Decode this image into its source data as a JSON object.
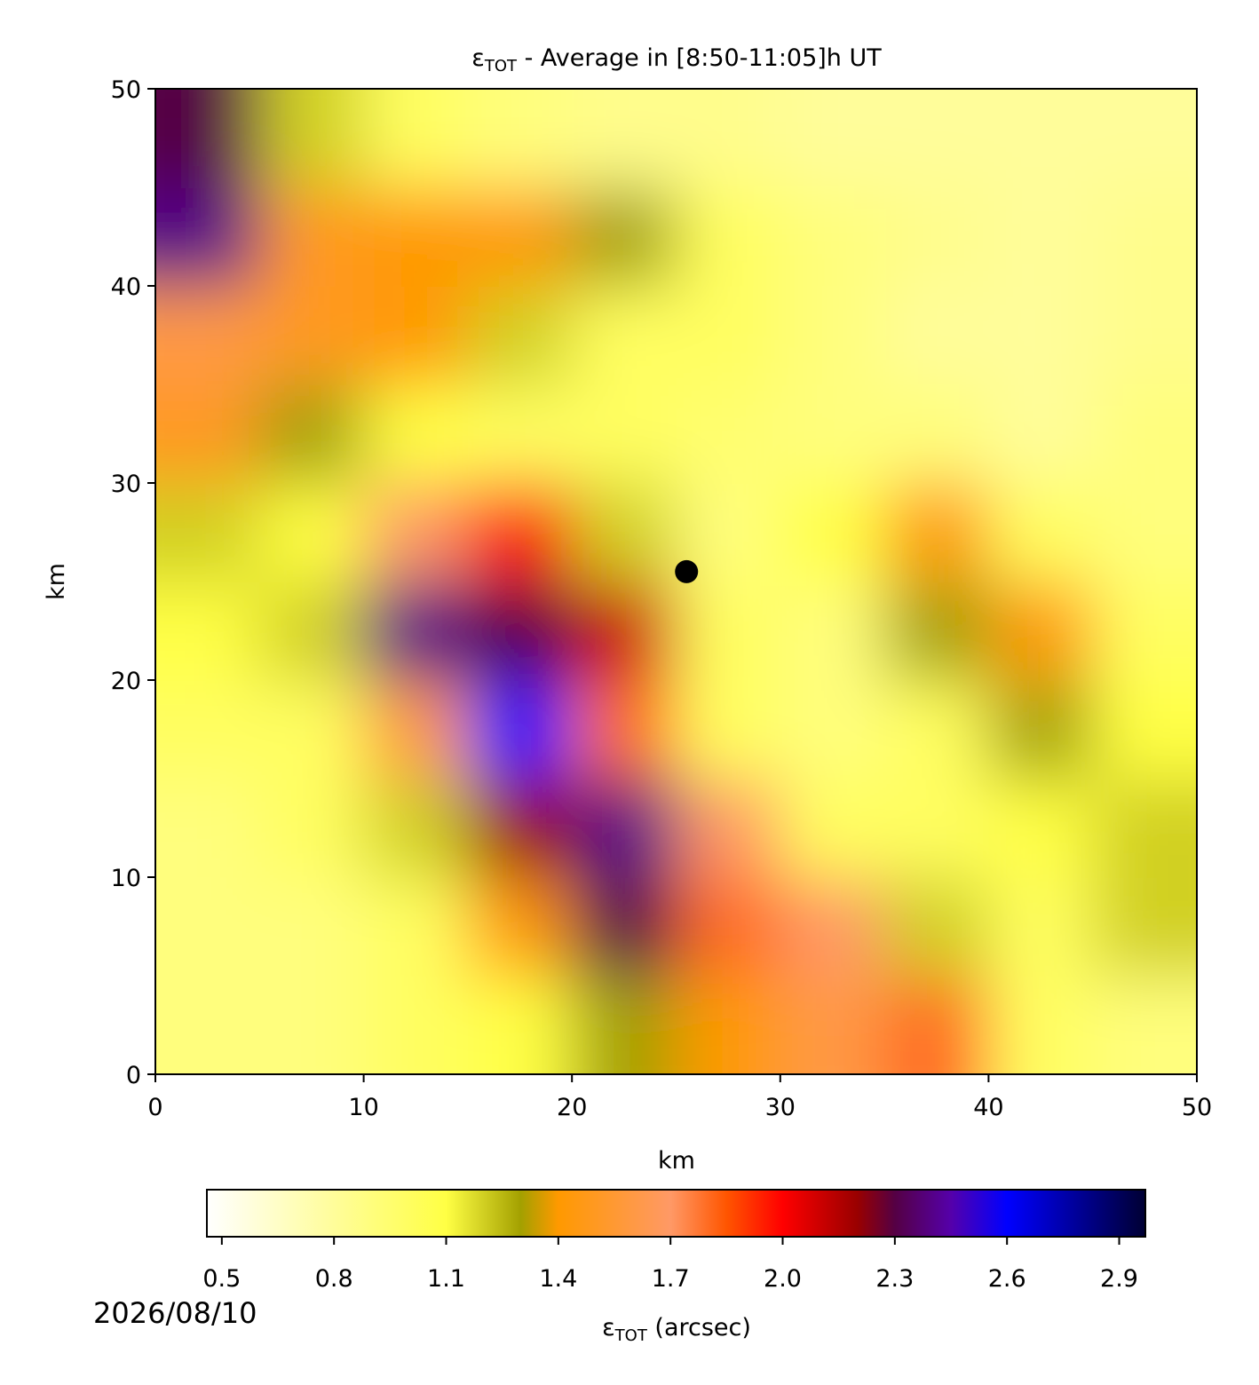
{
  "chart_data": {
    "type": "heatmap",
    "title": {
      "symbol": "ε",
      "subscript": "TOT",
      "text": " - Average in [8:50-11:05]h UT"
    },
    "xlabel": "km",
    "ylabel": "km",
    "xlim": [
      0,
      50
    ],
    "ylim": [
      0,
      50
    ],
    "xticks": [
      0,
      10,
      20,
      30,
      40,
      50
    ],
    "yticks": [
      0,
      10,
      20,
      30,
      40,
      50
    ],
    "x": [
      2.5,
      7.5,
      12.5,
      17.5,
      22.5,
      27.5,
      32.5,
      37.5,
      42.5,
      47.5
    ],
    "y": [
      2.5,
      7.5,
      12.5,
      17.5,
      22.5,
      27.5,
      32.5,
      37.5,
      42.5,
      47.5
    ],
    "z": [
      [
        0.9,
        0.9,
        1.0,
        1.1,
        1.3,
        1.4,
        1.6,
        1.8,
        1.0,
        0.9
      ],
      [
        0.9,
        0.9,
        1.0,
        1.4,
        2.3,
        1.8,
        1.7,
        1.2,
        1.0,
        1.2
      ],
      [
        0.9,
        1.0,
        1.2,
        2.2,
        2.4,
        1.7,
        1.0,
        1.0,
        1.1,
        1.2
      ],
      [
        1.0,
        1.0,
        1.6,
        2.6,
        1.8,
        1.0,
        0.9,
        1.0,
        1.3,
        1.1
      ],
      [
        1.1,
        1.2,
        2.4,
        2.3,
        2.1,
        1.0,
        0.9,
        1.3,
        1.4,
        1.0
      ],
      [
        1.2,
        1.1,
        1.7,
        2.0,
        1.2,
        0.9,
        1.1,
        1.4,
        1.0,
        0.9
      ],
      [
        1.5,
        1.3,
        1.1,
        1.0,
        1.0,
        0.95,
        0.9,
        0.9,
        0.8,
        0.9
      ],
      [
        1.6,
        1.5,
        1.4,
        1.2,
        1.0,
        1.0,
        0.9,
        0.8,
        0.8,
        0.85
      ],
      [
        2.4,
        1.5,
        1.4,
        1.4,
        1.3,
        1.0,
        0.9,
        0.85,
        0.8,
        0.85
      ],
      [
        2.3,
        1.2,
        1.0,
        0.9,
        0.85,
        0.85,
        0.8,
        0.8,
        0.8,
        0.8
      ]
    ],
    "markers": [
      {
        "x": 25.5,
        "y": 25.5,
        "color": "#000000"
      }
    ],
    "colorbar": {
      "label": {
        "symbol": "ε",
        "subscript": "TOT",
        "text": " (arcsec)"
      },
      "clim": [
        0.46,
        2.97
      ],
      "ticks": [
        0.5,
        0.8,
        1.1,
        1.4,
        1.7,
        {
          "value": 2,
          "label": "2.0"
        },
        2.3,
        2.6,
        2.9
      ],
      "colormap": [
        {
          "value": 0.46,
          "color": "#ffffff"
        },
        {
          "value": 0.8,
          "color": "#fffd9a"
        },
        {
          "value": 1.1,
          "color": "#ffff44"
        },
        {
          "value": 1.3,
          "color": "#a3a000"
        },
        {
          "value": 1.4,
          "color": "#ff9900"
        },
        {
          "value": 1.7,
          "color": "#ff9966"
        },
        {
          "value": 1.85,
          "color": "#ff5500"
        },
        {
          "value": 2.0,
          "color": "#ff0000"
        },
        {
          "value": 2.2,
          "color": "#990000"
        },
        {
          "value": 2.3,
          "color": "#550044"
        },
        {
          "value": 2.45,
          "color": "#5500aa"
        },
        {
          "value": 2.6,
          "color": "#0000ff"
        },
        {
          "value": 2.97,
          "color": "#000033"
        }
      ]
    },
    "date": "2026/08/10"
  }
}
